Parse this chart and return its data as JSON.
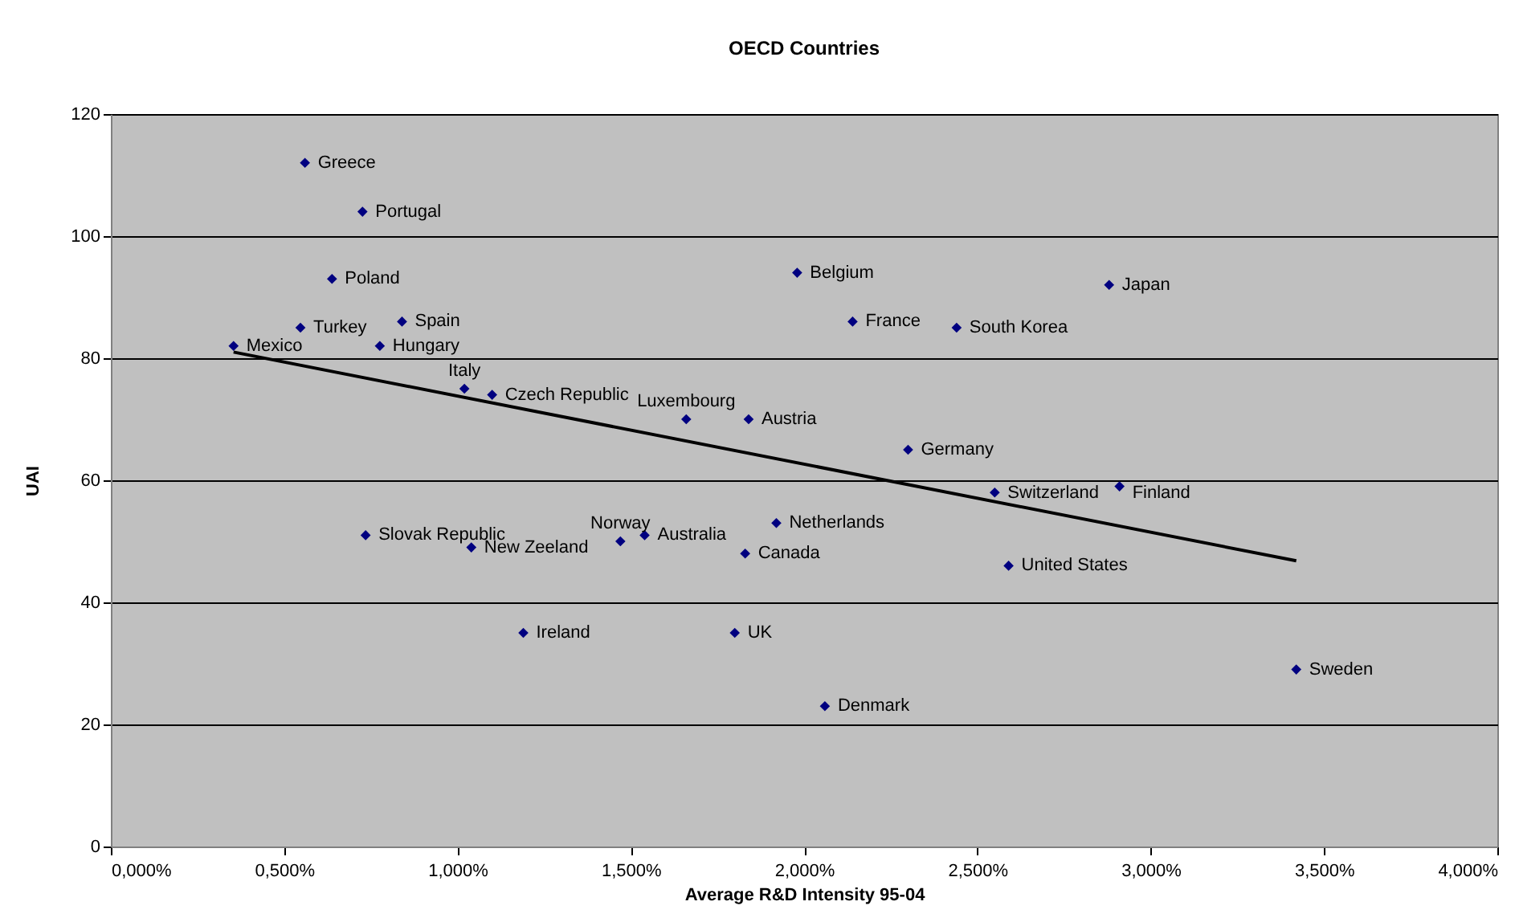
{
  "chart_data": {
    "type": "scatter",
    "title": "OECD Countries",
    "xlabel": "Average R&D Intensity 95-04",
    "ylabel": "UAI",
    "xlim": [
      0,
      4
    ],
    "xticks": [
      {
        "value": 0,
        "label": "0,000%"
      },
      {
        "value": 0.5,
        "label": "0,500%"
      },
      {
        "value": 1,
        "label": "1,000%"
      },
      {
        "value": 1.5,
        "label": "1,500%"
      },
      {
        "value": 2,
        "label": "2,000%"
      },
      {
        "value": 2.5,
        "label": "2,500%"
      },
      {
        "value": 3,
        "label": "3,000%"
      },
      {
        "value": 3.5,
        "label": "3,500%"
      },
      {
        "value": 4,
        "label": "4,000%"
      }
    ],
    "ylim": [
      0,
      120
    ],
    "yticks": [
      0,
      20,
      40,
      60,
      80,
      100,
      120
    ],
    "grid": "y",
    "marker": "diamond",
    "series": [
      {
        "color": "#000080",
        "x": [
          0.56,
          0.726,
          0.638,
          0.547,
          0.84,
          0.354,
          0.776,
          1.02,
          1.1,
          1.66,
          1.84,
          1.98,
          2.14,
          2.44,
          2.88,
          2.3,
          2.55,
          2.91,
          1.92,
          1.83,
          2.59,
          1.8,
          2.06,
          3.42,
          0.735,
          1.04,
          1.47,
          1.54,
          1.19
        ],
        "values": [
          112,
          104,
          93,
          85,
          86,
          82,
          82,
          75,
          74,
          70,
          70,
          94,
          86,
          85,
          92,
          65,
          58,
          59,
          53,
          48,
          46,
          35,
          23,
          29,
          51,
          49,
          50,
          51,
          35
        ]
      },
      {
        "type": "line",
        "color": "#000000",
        "marker": "none",
        "x": [
          0.354,
          3.42
        ],
        "values": [
          81,
          46.8
        ]
      }
    ],
    "annotations": [
      {
        "text": "Greece",
        "x": 0.56,
        "y": 112
      },
      {
        "text": "Portugal",
        "x": 0.726,
        "y": 104
      },
      {
        "text": "Poland",
        "x": 0.638,
        "y": 93
      },
      {
        "text": "Turkey",
        "x": 0.547,
        "y": 85
      },
      {
        "text": "Spain",
        "x": 0.84,
        "y": 86
      },
      {
        "text": "Mexico",
        "x": 0.354,
        "y": 82
      },
      {
        "text": "Hungary",
        "x": 0.776,
        "y": 82
      },
      {
        "text": "Italy",
        "x": 1.02,
        "y": 75
      },
      {
        "text": "Czech Republic",
        "x": 1.1,
        "y": 74
      },
      {
        "text": "Luxembourg",
        "x": 1.66,
        "y": 70
      },
      {
        "text": "Austria",
        "x": 1.84,
        "y": 70
      },
      {
        "text": "Belgium",
        "x": 1.98,
        "y": 94
      },
      {
        "text": "France",
        "x": 2.14,
        "y": 86
      },
      {
        "text": "South Korea",
        "x": 2.44,
        "y": 85
      },
      {
        "text": "Japan",
        "x": 2.88,
        "y": 92
      },
      {
        "text": "Germany",
        "x": 2.3,
        "y": 65
      },
      {
        "text": "Switzerland",
        "x": 2.55,
        "y": 58
      },
      {
        "text": "Finland",
        "x": 2.91,
        "y": 59
      },
      {
        "text": "Netherlands",
        "x": 1.92,
        "y": 53
      },
      {
        "text": "Canada",
        "x": 1.83,
        "y": 48
      },
      {
        "text": "United States",
        "x": 2.59,
        "y": 46
      },
      {
        "text": "UK",
        "x": 1.8,
        "y": 35
      },
      {
        "text": "Denmark",
        "x": 2.06,
        "y": 23
      },
      {
        "text": "Sweden",
        "x": 3.42,
        "y": 29
      },
      {
        "text": "Slovak Republic",
        "x": 0.735,
        "y": 51
      },
      {
        "text": "New Zeeland",
        "x": 1.04,
        "y": 49
      },
      {
        "text": "Norway",
        "x": 1.47,
        "y": 50
      },
      {
        "text": "Australia",
        "x": 1.54,
        "y": 51
      },
      {
        "text": "Ireland",
        "x": 1.19,
        "y": 35
      }
    ]
  }
}
